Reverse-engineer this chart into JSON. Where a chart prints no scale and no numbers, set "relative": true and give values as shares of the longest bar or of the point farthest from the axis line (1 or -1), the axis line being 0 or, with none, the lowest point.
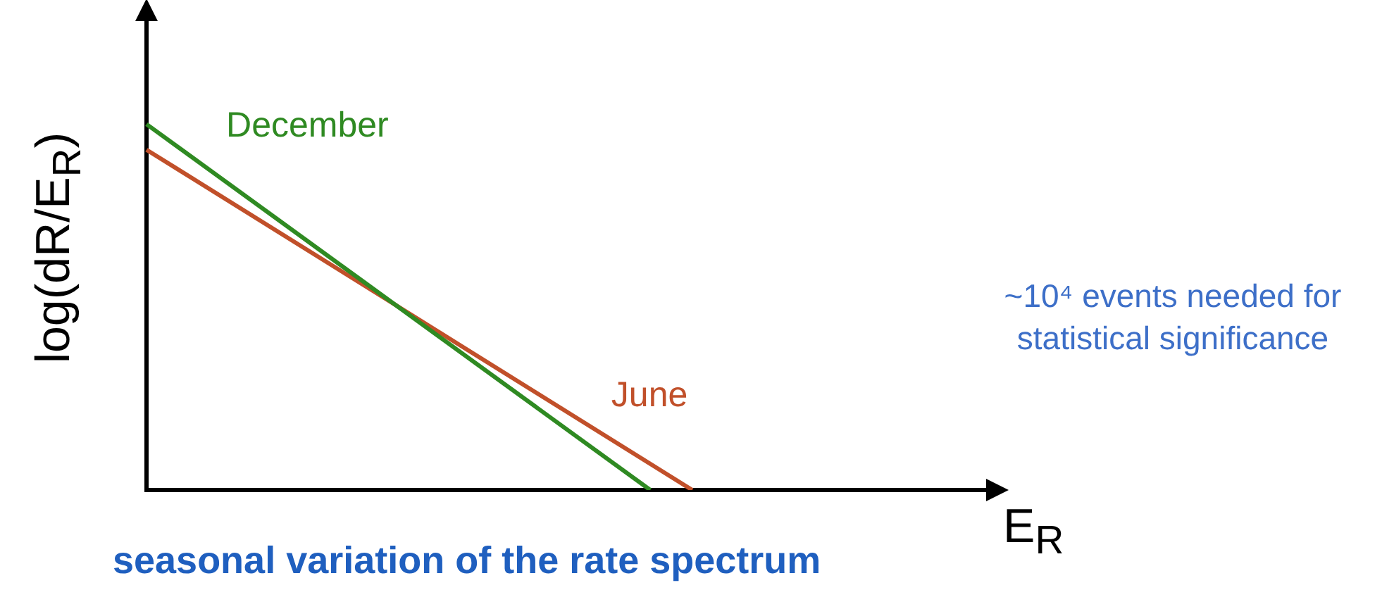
{
  "chart_data": {
    "type": "line",
    "relative": true,
    "title": "seasonal variation of the rate spectrum",
    "xlabel": "E$_{R}$",
    "ylabel": "log(dR/E$_{R}$)",
    "annotations": [
      "~10⁴ events needed for statistical significance"
    ],
    "legend": false,
    "marker": "none",
    "line_style": "solid",
    "categories": [
      null,
      null,
      null,
      null,
      null,
      null,
      null,
      null,
      null,
      null,
      null,
      null,
      null,
      null,
      null,
      null,
      null,
      null,
      null,
      null,
      null
    ],
    "series": [
      {
        "name": "December",
        "color": "#2f8a22",
        "values": [
          1,
          null,
          null,
          null,
          null,
          null,
          null,
          null,
          null,
          null,
          null,
          null,
          0,
          null,
          null,
          null,
          null,
          null,
          null,
          null,
          null
        ]
      },
      {
        "name": "June",
        "color": "#c1502a",
        "values": [
          0.93,
          null,
          null,
          null,
          null,
          null,
          null,
          null,
          null,
          null,
          null,
          null,
          null,
          0,
          null,
          null,
          null,
          null,
          null,
          null,
          null
        ]
      }
    ]
  }
}
